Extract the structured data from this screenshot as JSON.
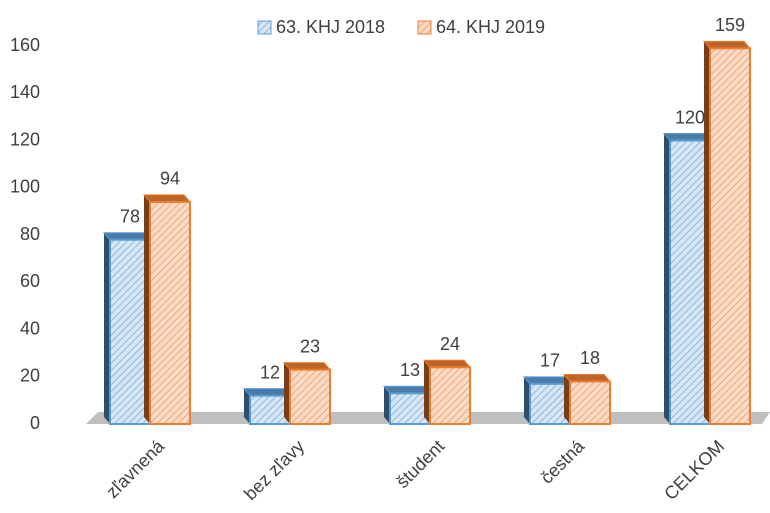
{
  "chart_data": {
    "type": "bar",
    "categories": [
      "zľavnená",
      "bez zľavy",
      "študent",
      "čestná",
      "CELKOM"
    ],
    "series": [
      {
        "name": "63. KHJ 2018",
        "color": "#5b9bd5",
        "values": [
          78,
          12,
          13,
          17,
          120
        ]
      },
      {
        "name": "64. KHJ 2019",
        "color": "#ed7d31",
        "values": [
          94,
          23,
          24,
          18,
          159
        ]
      }
    ],
    "ylim": [
      0,
      160
    ],
    "yticks": [
      0,
      20,
      40,
      60,
      80,
      100,
      120,
      140,
      160
    ],
    "legend": "top",
    "grid": false
  }
}
